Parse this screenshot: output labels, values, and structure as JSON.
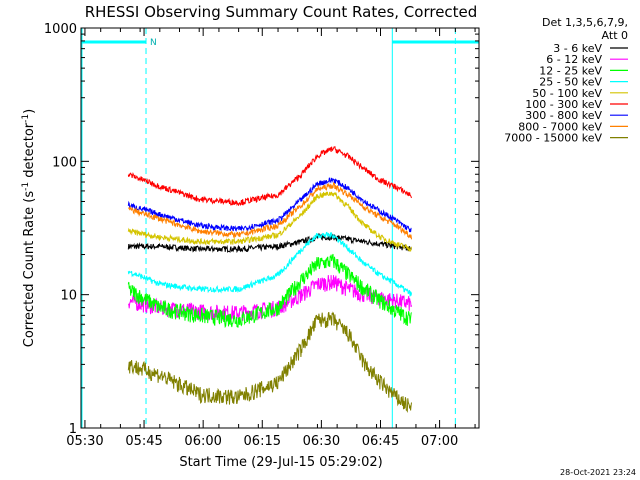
{
  "chart_data": {
    "type": "line",
    "title": "RHESSI Observing Summary Count Rates, Corrected",
    "xlabel": "Start Time (29-Jul-15 05:29:02)",
    "ylabel_parts": [
      "Corrected Count Rate (s",
      "-1",
      " detector",
      "-1",
      ")"
    ],
    "y_scale": "log",
    "ylim": [
      1,
      1000
    ],
    "xlim_min": [
      0,
      101
    ],
    "x_ticks": [
      {
        "t": 1,
        "label": "05:30"
      },
      {
        "t": 16,
        "label": "05:45"
      },
      {
        "t": 31,
        "label": "06:00"
      },
      {
        "t": 46,
        "label": "06:15"
      },
      {
        "t": 61,
        "label": "06:30"
      },
      {
        "t": 76,
        "label": "06:45"
      },
      {
        "t": 91,
        "label": "07:00"
      }
    ],
    "y_ticks": [
      {
        "v": 1,
        "label": "1"
      },
      {
        "v": 10,
        "label": "10"
      },
      {
        "v": 100,
        "label": "100"
      },
      {
        "v": 1000,
        "label": "1000"
      }
    ],
    "legend_header": [
      "Det 1,3,5,6,7,9,",
      "Att 0"
    ],
    "night_intervals": [
      [
        0,
        16.5
      ],
      [
        79,
        101
      ]
    ],
    "saa_label": "N",
    "saa_marks": [
      {
        "t": 16.5,
        "label": "N"
      }
    ],
    "vertical_markers": [
      {
        "t": 16.5,
        "style": "dashed"
      },
      {
        "t": 79,
        "style": "solid"
      },
      {
        "t": 95,
        "style": "dashed"
      }
    ],
    "series": [
      {
        "name": "3 - 6 keV",
        "color": "#000000",
        "x": [
          12,
          20,
          30,
          40,
          50,
          56,
          60,
          64,
          68,
          72,
          76,
          80,
          84
        ],
        "y": [
          23,
          23,
          22,
          22,
          23,
          25,
          27,
          27,
          26,
          25,
          24,
          23,
          22
        ]
      },
      {
        "name": "6 - 12 keV",
        "color": "#ff00ff",
        "x": [
          12,
          20,
          30,
          40,
          50,
          56,
          60,
          64,
          68,
          72,
          76,
          80,
          84
        ],
        "y": [
          9,
          8,
          7.5,
          7.3,
          8,
          10,
          12,
          12.5,
          11,
          10,
          9.5,
          9,
          8.5
        ]
      },
      {
        "name": "12 - 25 keV",
        "color": "#00ff00",
        "x": [
          12,
          20,
          30,
          40,
          50,
          56,
          60,
          64,
          68,
          72,
          76,
          80,
          84
        ],
        "y": [
          11,
          8,
          7,
          6.5,
          8,
          13,
          17,
          18,
          14,
          11,
          9,
          7.5,
          6.5
        ]
      },
      {
        "name": "25 - 50 keV",
        "color": "#00ffff",
        "x": [
          12,
          20,
          30,
          40,
          50,
          56,
          60,
          64,
          68,
          72,
          76,
          80,
          84
        ],
        "y": [
          15,
          12,
          11,
          11,
          14,
          22,
          28,
          28,
          22,
          17,
          14,
          12,
          10
        ]
      },
      {
        "name": "50 - 100 keV",
        "color": "#d4c400",
        "x": [
          12,
          20,
          30,
          40,
          50,
          56,
          60,
          64,
          68,
          72,
          76,
          80,
          84
        ],
        "y": [
          30,
          27,
          25,
          25,
          28,
          40,
          55,
          58,
          45,
          33,
          27,
          24,
          22
        ]
      },
      {
        "name": "100 - 300 keV",
        "color": "#ff0000",
        "x": [
          12,
          20,
          30,
          40,
          50,
          56,
          60,
          64,
          68,
          72,
          76,
          80,
          84
        ],
        "y": [
          80,
          65,
          52,
          49,
          56,
          80,
          110,
          125,
          108,
          87,
          72,
          64,
          55
        ]
      },
      {
        "name": "300 - 800 keV",
        "color": "#0000ff",
        "x": [
          12,
          20,
          30,
          40,
          50,
          56,
          60,
          64,
          68,
          72,
          76,
          80,
          84
        ],
        "y": [
          47,
          40,
          33,
          31,
          36,
          52,
          68,
          73,
          62,
          50,
          42,
          36,
          30
        ]
      },
      {
        "name": "800 - 7000 keV",
        "color": "#ff8000",
        "x": [
          12,
          20,
          30,
          40,
          50,
          56,
          60,
          64,
          68,
          72,
          76,
          80,
          84
        ],
        "y": [
          44,
          37,
          30,
          28,
          33,
          47,
          62,
          66,
          56,
          45,
          38,
          33,
          27
        ]
      },
      {
        "name": "7000 - 15000 keV",
        "color": "#808000",
        "x": [
          12,
          20,
          30,
          40,
          50,
          56,
          60,
          64,
          68,
          72,
          76,
          80,
          84
        ],
        "y": [
          3,
          2.5,
          1.8,
          1.7,
          2.2,
          4,
          6.5,
          6.5,
          5,
          3,
          2.2,
          1.7,
          1.4
        ]
      }
    ]
  },
  "footer": {
    "timestamp": "28-Oct-2021 23:24"
  }
}
